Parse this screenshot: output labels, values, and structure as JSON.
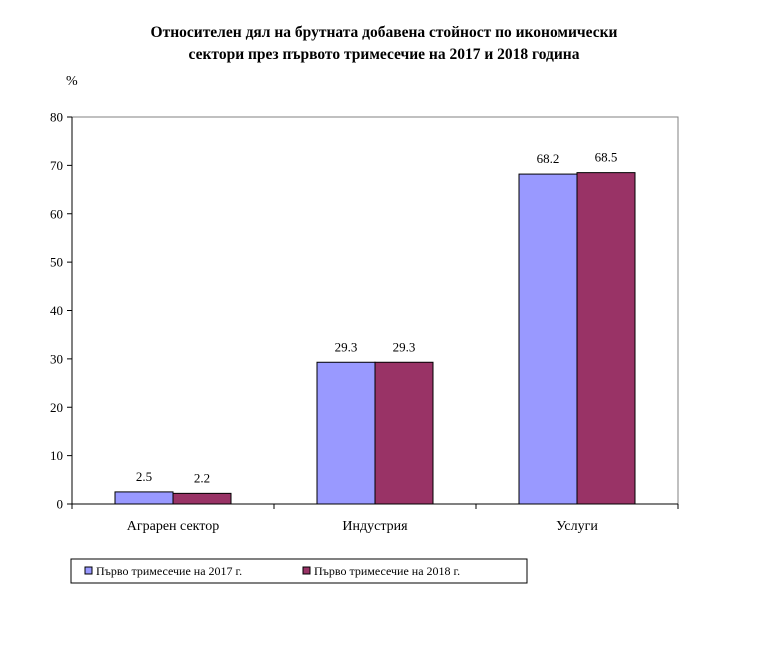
{
  "chart_data": {
    "type": "bar",
    "title_lines": [
      "Относителен дял на брутната добавена стойност по икономически",
      "сектори през първото тримесечие на 2017 и 2018 година"
    ],
    "ylabel": "%",
    "xlabel": "",
    "ylim": [
      0,
      80
    ],
    "yticks": [
      "0",
      "10",
      "20",
      "30",
      "40",
      "50",
      "60",
      "70",
      "80"
    ],
    "categories": [
      "Аграрен сектор",
      "Индустрия",
      "Услуги"
    ],
    "series": [
      {
        "name": "Първо тримесечие на 2017 г.",
        "values": [
          2.5,
          29.3,
          68.2
        ],
        "labels": [
          "2.5",
          "29.3",
          "68.2"
        ],
        "color": "#9999ff"
      },
      {
        "name": "Първо тримесечие на 2018 г.",
        "values": [
          2.2,
          29.3,
          68.5
        ],
        "labels": [
          "2.2",
          "29.3",
          "68.5"
        ],
        "color": "#993366"
      }
    ],
    "grid": false,
    "legend_position": "bottom-left"
  }
}
